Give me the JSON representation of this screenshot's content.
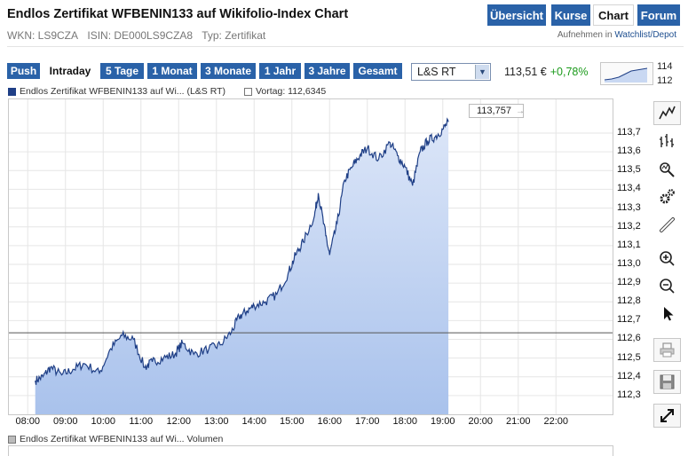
{
  "header": {
    "title": "Endlos Zertifikat WFBENIN133 auf Wikifolio-Index Chart",
    "meta": [
      "WKN: LS9CZA",
      "ISIN: DE000LS9CZA8",
      "Typ: Zertifikat"
    ],
    "nav": [
      "Übersicht",
      "Kurse",
      "Chart",
      "Forum"
    ],
    "watchlist_prefix": "Aufnehmen in",
    "watchlist_link": "Watchlist/Depot"
  },
  "toolbar": {
    "ranges": [
      "Push",
      "Intraday",
      "5 Tage",
      "1 Monat",
      "3 Monate",
      "1 Jahr",
      "3 Jahre",
      "Gesamt"
    ],
    "active_range": "Intraday",
    "exchange": "L&S RT",
    "price": "113,51 €",
    "change": "+0,78%",
    "mini_high": "114",
    "mini_low": "112"
  },
  "legend": {
    "series": "Endlos Zertifikat WFBENIN133 auf Wi... (L&S RT)",
    "previous": "Vortag: 112,6345",
    "volume": "Endlos Zertifikat WFBENIN133 auf Wi... Volumen"
  },
  "last_value_label": "113,757",
  "colors": {
    "accent": "#2a62a8",
    "line": "#1f3f86",
    "fill_top": "#dce6f8",
    "fill_bottom": "#a9c2ec",
    "positive": "#1a9a1a"
  },
  "tools": [
    "line-chart-icon",
    "ohlc-chart-icon",
    "indicator-icon",
    "settings-icon",
    "draw-line-icon",
    "zoom-in-icon",
    "zoom-out-icon",
    "pointer-icon",
    "print-icon",
    "save-icon",
    "fullscreen-icon"
  ],
  "chart_data": {
    "type": "area",
    "ylim": [
      112.2,
      113.88
    ],
    "xlim": [
      7.5,
      23.5
    ],
    "yticks": [
      "113,7",
      "113,6",
      "113,5",
      "113,4",
      "113,3",
      "113,2",
      "113,1",
      "113,0",
      "112,9",
      "112,8",
      "112,7",
      "112,6",
      "112,5",
      "112,4",
      "112,3"
    ],
    "xticks": [
      "08:00",
      "09:00",
      "10:00",
      "11:00",
      "12:00",
      "13:00",
      "14:00",
      "15:00",
      "16:00",
      "17:00",
      "18:00",
      "19:00",
      "20:00",
      "21:00",
      "22:00"
    ],
    "previous_close": 112.6345,
    "series": [
      {
        "x": [
          8.2,
          8.4,
          8.6,
          8.9,
          9.2,
          9.5,
          9.9,
          10.2,
          10.5,
          10.8,
          11.1,
          11.3,
          11.6,
          11.9,
          12.1,
          12.4,
          12.8,
          13.1,
          13.4,
          13.6,
          13.8,
          14.0,
          14.3,
          14.6,
          14.9,
          15.1,
          15.3,
          15.6,
          15.7,
          15.9,
          16.0,
          16.2,
          16.4,
          16.6,
          16.8,
          17.0,
          17.3,
          17.6,
          17.8,
          18.0,
          18.2,
          18.4,
          18.6,
          18.8,
          19.0,
          19.15
        ],
        "y": [
          112.38,
          112.4,
          112.45,
          112.41,
          112.44,
          112.47,
          112.42,
          112.55,
          112.62,
          112.6,
          112.45,
          112.48,
          112.5,
          112.52,
          112.58,
          112.52,
          112.55,
          112.57,
          112.64,
          112.72,
          112.75,
          112.78,
          112.8,
          112.84,
          112.95,
          113.05,
          113.12,
          113.26,
          113.38,
          113.15,
          113.05,
          113.22,
          113.45,
          113.52,
          113.58,
          113.62,
          113.56,
          113.65,
          113.58,
          113.52,
          113.42,
          113.6,
          113.66,
          113.68,
          113.72,
          113.76
        ]
      }
    ]
  }
}
